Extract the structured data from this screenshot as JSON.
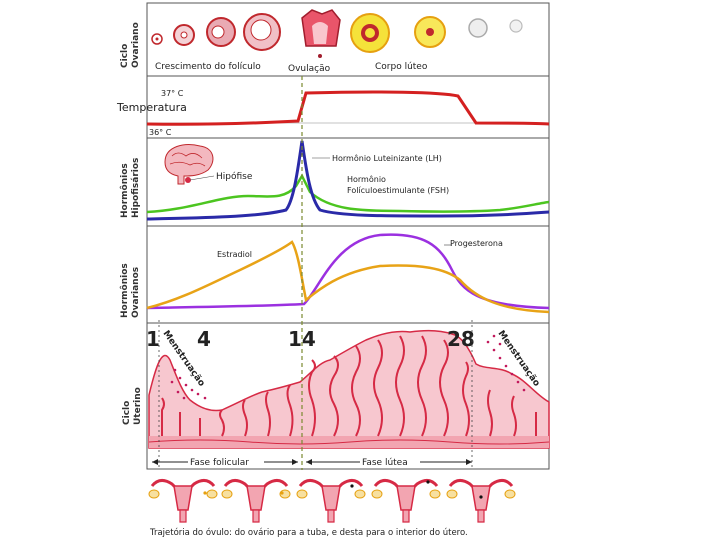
{
  "sections": {
    "ovarian": {
      "title_line1": "Ciclo",
      "title_line2": "Ovariano"
    },
    "hormones_pituitary": {
      "title_line1": "Hormônios",
      "title_line2": "Hipofisários"
    },
    "hormones_ovarian": {
      "title_line1": "Hormônios",
      "title_line2": "Ovarianos"
    },
    "uterine": {
      "title_line1": "Ciclo",
      "title_line2": "Uterino"
    }
  },
  "ovarian_labels": {
    "follicle_growth": "Crescimento do folículo",
    "ovulation": "Ovulação",
    "corpus_luteum": "Corpo lúteo"
  },
  "temperature": {
    "title": "Temperatura",
    "high": "37° C",
    "low": "36° C"
  },
  "pituitary": {
    "gland_label": "Hipófise",
    "lh_label": "Hormônio Luteinizante (LH)",
    "fsh_label_line1": "Hormônio",
    "fsh_label_line2": "Folículoestimulante (FSH)"
  },
  "ovarian_hormones": {
    "estradiol_label": "Estradiol",
    "progesterone_label": "Progesterona"
  },
  "uterine": {
    "days": [
      "1",
      "4",
      "14",
      "28"
    ],
    "menstruation_left": "Menstruação",
    "menstruation_right": "Menstruação"
  },
  "phases": {
    "follicular": "Fase folicular",
    "luteal": "Fase lútea"
  },
  "trajectory_caption": "Trajetória do óvulo: do ovário para a tuba, e desta para o interior do útero.",
  "colors": {
    "temperature": "#d42020",
    "lh": "#2a2aa8",
    "fsh": "#4cc520",
    "estradiol": "#e8a317",
    "progesterone": "#9b30e0",
    "endometrium": "#f7c7cf",
    "endometrium_edge": "#d62a45",
    "ovulation_line": "#7a8a30"
  }
}
